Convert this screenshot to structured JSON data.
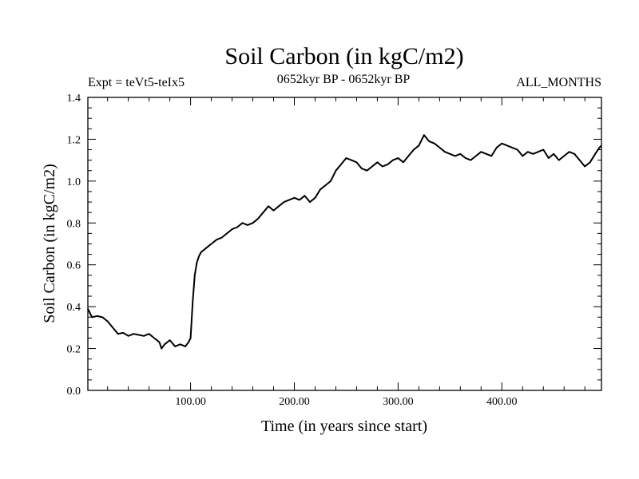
{
  "chart_data": {
    "type": "line",
    "title": "Soil Carbon (in kgC/m2)",
    "subtitle_left": "Expt = teVt5-teIx5",
    "subtitle_center": "0652kyr BP - 0652kyr BP",
    "subtitle_right": "ALL_MONTHS",
    "xlabel": "Time (in years since start)",
    "ylabel": "Soil Carbon (in kgC/m2)",
    "xlim": [
      1,
      496
    ],
    "ylim": [
      0.0,
      1.4
    ],
    "x_ticks": [
      100,
      200,
      300,
      400
    ],
    "x_tick_labels": [
      "100.00",
      "200.00",
      "300.00",
      "400.00"
    ],
    "y_ticks": [
      0.0,
      0.2,
      0.4,
      0.6,
      0.8,
      1.0,
      1.2,
      1.4
    ],
    "y_tick_labels": [
      "0.0",
      "0.2",
      "0.4",
      "0.6",
      "0.8",
      "1.0",
      "1.2",
      "1.4"
    ],
    "series": [
      {
        "name": "Soil Carbon",
        "x": [
          1,
          3,
          5,
          10,
          15,
          20,
          25,
          30,
          35,
          40,
          45,
          50,
          55,
          60,
          65,
          70,
          72,
          75,
          80,
          85,
          90,
          95,
          98,
          100,
          102,
          104,
          106,
          108,
          110,
          115,
          120,
          125,
          130,
          135,
          140,
          145,
          150,
          155,
          160,
          165,
          170,
          175,
          180,
          185,
          190,
          195,
          200,
          205,
          210,
          215,
          220,
          225,
          230,
          235,
          240,
          245,
          250,
          255,
          260,
          265,
          270,
          275,
          280,
          285,
          290,
          295,
          300,
          305,
          310,
          315,
          320,
          325,
          330,
          335,
          340,
          345,
          350,
          355,
          360,
          365,
          370,
          375,
          380,
          385,
          390,
          395,
          400,
          405,
          410,
          415,
          420,
          425,
          430,
          435,
          440,
          445,
          450,
          455,
          460,
          465,
          470,
          475,
          480,
          485,
          490,
          494,
          496
        ],
        "y": [
          0.39,
          0.37,
          0.35,
          0.355,
          0.35,
          0.33,
          0.3,
          0.27,
          0.275,
          0.26,
          0.27,
          0.265,
          0.26,
          0.27,
          0.25,
          0.23,
          0.2,
          0.22,
          0.24,
          0.21,
          0.22,
          0.21,
          0.23,
          0.25,
          0.42,
          0.55,
          0.61,
          0.64,
          0.66,
          0.68,
          0.7,
          0.72,
          0.73,
          0.75,
          0.77,
          0.78,
          0.8,
          0.79,
          0.8,
          0.82,
          0.85,
          0.88,
          0.86,
          0.88,
          0.9,
          0.91,
          0.92,
          0.91,
          0.93,
          0.9,
          0.92,
          0.96,
          0.98,
          1.0,
          1.05,
          1.08,
          1.11,
          1.1,
          1.09,
          1.06,
          1.05,
          1.07,
          1.09,
          1.07,
          1.08,
          1.1,
          1.11,
          1.09,
          1.12,
          1.15,
          1.17,
          1.22,
          1.19,
          1.18,
          1.16,
          1.14,
          1.13,
          1.12,
          1.13,
          1.11,
          1.1,
          1.12,
          1.14,
          1.13,
          1.12,
          1.16,
          1.18,
          1.17,
          1.16,
          1.15,
          1.12,
          1.14,
          1.13,
          1.14,
          1.15,
          1.11,
          1.13,
          1.1,
          1.12,
          1.14,
          1.13,
          1.1,
          1.07,
          1.09,
          1.13,
          1.16,
          1.17
        ]
      }
    ]
  }
}
